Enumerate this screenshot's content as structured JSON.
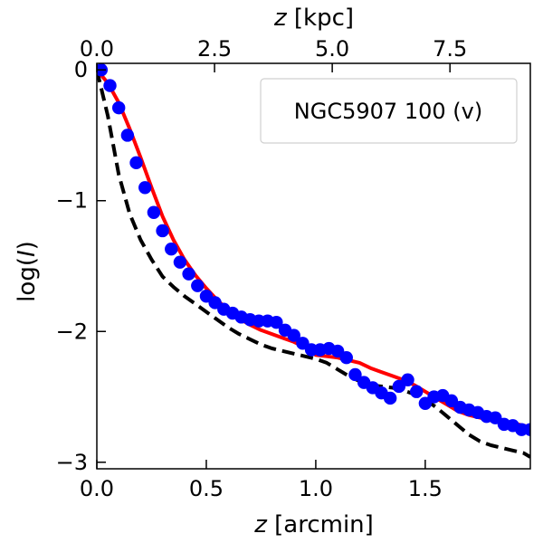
{
  "chart_data": {
    "type": "scatter",
    "title": "",
    "legend": {
      "label": "NGC5907 100 (v)",
      "placement": "top-right"
    },
    "xlabel": {
      "italic": "z",
      "rest": " [arcmin]"
    },
    "ylabel": {
      "pre": "log(",
      "italic": "I",
      "post": ")"
    },
    "top_xlabel": {
      "italic": "z",
      "rest": " [kpc]"
    },
    "xlim": [
      0.0,
      1.98
    ],
    "ylim": [
      -3.05,
      0.05
    ],
    "x_ticks": [
      0.0,
      0.5,
      1.0,
      1.5
    ],
    "x_tick_labels": [
      "0.0",
      "0.5",
      "1.0",
      "1.5"
    ],
    "y_ticks": [
      0,
      -1,
      -2,
      -3
    ],
    "y_tick_labels": [
      "0",
      "−1",
      "−2",
      "−3"
    ],
    "top_ticks_kpc": [
      0.0,
      2.5,
      5.0,
      7.5
    ],
    "top_tick_labels": [
      "0.0",
      "2.5",
      "5.0",
      "7.5"
    ],
    "kpc_per_arcmin": 4.65,
    "colors": {
      "points": "#0000ff",
      "model": "#ff0000",
      "dashed": "#000000",
      "axes": "#000000"
    },
    "series": [
      {
        "name": "observed profile",
        "style": "points",
        "x": [
          0.02,
          0.06,
          0.1,
          0.14,
          0.18,
          0.22,
          0.26,
          0.3,
          0.34,
          0.38,
          0.42,
          0.46,
          0.5,
          0.54,
          0.58,
          0.62,
          0.66,
          0.7,
          0.74,
          0.78,
          0.82,
          0.86,
          0.9,
          0.94,
          0.98,
          1.02,
          1.06,
          1.1,
          1.14,
          1.18,
          1.22,
          1.26,
          1.3,
          1.34,
          1.38,
          1.42,
          1.46,
          1.5,
          1.54,
          1.58,
          1.62,
          1.66,
          1.7,
          1.74,
          1.78,
          1.82,
          1.86,
          1.9,
          1.94,
          1.98
        ],
        "y": [
          0.0,
          -0.12,
          -0.29,
          -0.5,
          -0.71,
          -0.9,
          -1.09,
          -1.23,
          -1.37,
          -1.47,
          -1.56,
          -1.65,
          -1.73,
          -1.78,
          -1.83,
          -1.86,
          -1.89,
          -1.91,
          -1.92,
          -1.92,
          -1.93,
          -1.99,
          -2.03,
          -2.09,
          -2.14,
          -2.14,
          -2.13,
          -2.15,
          -2.2,
          -2.33,
          -2.39,
          -2.43,
          -2.47,
          -2.51,
          -2.42,
          -2.37,
          -2.46,
          -2.55,
          -2.5,
          -2.49,
          -2.53,
          -2.58,
          -2.6,
          -2.62,
          -2.65,
          -2.66,
          -2.71,
          -2.72,
          -2.75,
          -2.75
        ]
      },
      {
        "name": "model",
        "style": "solid",
        "x": [
          0.0,
          0.05,
          0.1,
          0.15,
          0.2,
          0.25,
          0.3,
          0.35,
          0.4,
          0.45,
          0.5,
          0.55,
          0.6,
          0.65,
          0.7,
          0.75,
          0.8,
          0.85,
          0.9,
          0.95,
          1.0,
          1.05,
          1.1,
          1.15,
          1.2,
          1.25,
          1.3,
          1.35,
          1.4,
          1.45,
          1.5,
          1.55,
          1.6,
          1.65,
          1.7,
          1.75,
          1.8,
          1.85,
          1.9,
          1.95,
          1.98
        ],
        "y": [
          0.0,
          -0.1,
          -0.25,
          -0.45,
          -0.67,
          -0.9,
          -1.12,
          -1.3,
          -1.45,
          -1.57,
          -1.67,
          -1.76,
          -1.84,
          -1.9,
          -1.95,
          -1.99,
          -2.02,
          -2.05,
          -2.08,
          -2.12,
          -2.18,
          -2.19,
          -2.2,
          -2.22,
          -2.24,
          -2.28,
          -2.31,
          -2.34,
          -2.37,
          -2.41,
          -2.46,
          -2.51,
          -2.56,
          -2.61,
          -2.64,
          -2.66,
          -2.68,
          -2.69,
          -2.7,
          -2.72,
          -2.73
        ]
      },
      {
        "name": "dashed profile",
        "style": "dashed",
        "x": [
          0.0,
          0.05,
          0.1,
          0.15,
          0.2,
          0.25,
          0.3,
          0.35,
          0.4,
          0.45,
          0.5,
          0.55,
          0.6,
          0.65,
          0.7,
          0.75,
          0.8,
          0.85,
          0.9,
          0.95,
          1.0,
          1.05,
          1.1,
          1.15,
          1.2,
          1.25,
          1.3,
          1.35,
          1.4,
          1.45,
          1.5,
          1.55,
          1.6,
          1.65,
          1.7,
          1.75,
          1.8,
          1.85,
          1.9,
          1.95,
          1.98
        ],
        "y": [
          0.0,
          -0.35,
          -0.8,
          -1.1,
          -1.3,
          -1.45,
          -1.58,
          -1.66,
          -1.73,
          -1.79,
          -1.85,
          -1.91,
          -1.97,
          -2.02,
          -2.06,
          -2.1,
          -2.13,
          -2.15,
          -2.17,
          -2.19,
          -2.21,
          -2.24,
          -2.29,
          -2.34,
          -2.38,
          -2.41,
          -2.42,
          -2.43,
          -2.45,
          -2.48,
          -2.52,
          -2.58,
          -2.65,
          -2.72,
          -2.79,
          -2.84,
          -2.87,
          -2.89,
          -2.91,
          -2.93,
          -2.96
        ]
      }
    ]
  }
}
